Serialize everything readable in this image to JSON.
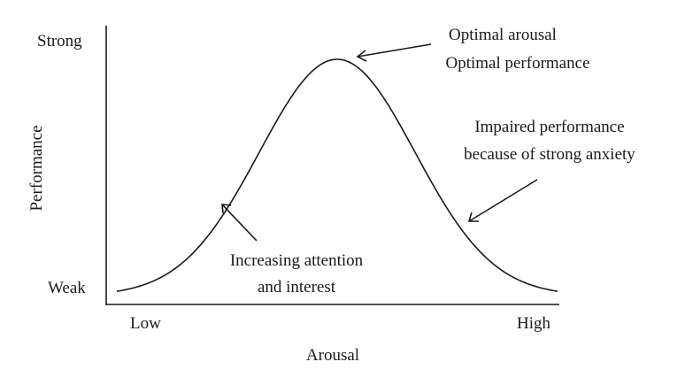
{
  "diagram": {
    "y_axis": {
      "label": "Performance",
      "top_label": "Strong",
      "bottom_label": "Weak"
    },
    "x_axis": {
      "label": "Arousal",
      "left_label": "Low",
      "right_label": "High"
    },
    "curve_shape": "inverted-U (bell curve)",
    "annotations": [
      {
        "lines": [
          "Optimal arousal",
          "Optimal performance"
        ]
      },
      {
        "lines": [
          "Impaired performance",
          "because of strong anxiety"
        ]
      },
      {
        "lines": [
          "Increasing attention",
          "and interest"
        ]
      }
    ],
    "line_color": "#1a1a1a"
  }
}
